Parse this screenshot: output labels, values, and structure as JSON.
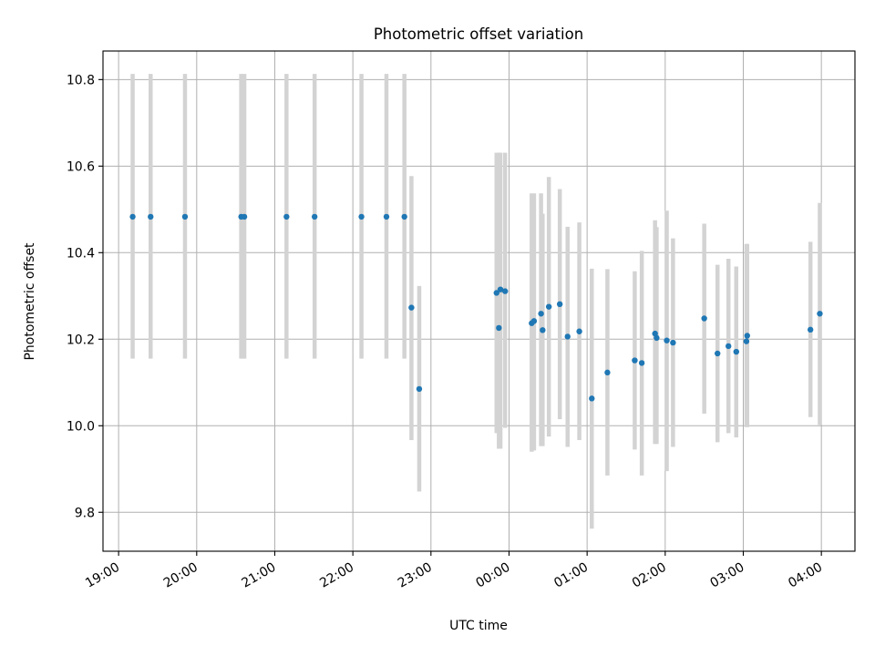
{
  "chart_data": {
    "type": "scatter",
    "title": "Photometric offset variation",
    "xlabel": "UTC time",
    "ylabel": "Photometric offset",
    "x_axis_type": "time",
    "x_unit": "hours",
    "xlim": [
      18.8,
      28.43
    ],
    "ylim": [
      9.71,
      10.866
    ],
    "xticks": [
      {
        "value": 19,
        "label": "19:00"
      },
      {
        "value": 20,
        "label": "20:00"
      },
      {
        "value": 21,
        "label": "21:00"
      },
      {
        "value": 22,
        "label": "22:00"
      },
      {
        "value": 23,
        "label": "23:00"
      },
      {
        "value": 24,
        "label": "00:00"
      },
      {
        "value": 25,
        "label": "01:00"
      },
      {
        "value": 26,
        "label": "02:00"
      },
      {
        "value": 27,
        "label": "03:00"
      },
      {
        "value": 28,
        "label": "04:00"
      }
    ],
    "yticks": [
      {
        "value": 9.8,
        "label": "9.8"
      },
      {
        "value": 10.0,
        "label": "10.0"
      },
      {
        "value": 10.2,
        "label": "10.2"
      },
      {
        "value": 10.4,
        "label": "10.4"
      },
      {
        "value": 10.6,
        "label": "10.6"
      },
      {
        "value": 10.8,
        "label": "10.8"
      }
    ],
    "grid": true,
    "colors": {
      "point": "#1f77b4",
      "errorbar": "#d3d3d3"
    },
    "series": [
      {
        "points": [
          {
            "x": 19.18,
            "y": 10.483,
            "yerr_low": 10.155,
            "yerr_high": 10.813
          },
          {
            "x": 19.41,
            "y": 10.483,
            "yerr_low": 10.155,
            "yerr_high": 10.813
          },
          {
            "x": 19.85,
            "y": 10.483,
            "yerr_low": 10.155,
            "yerr_high": 10.813
          },
          {
            "x": 20.57,
            "y": 10.483,
            "yerr_low": 10.155,
            "yerr_high": 10.813
          },
          {
            "x": 20.61,
            "y": 10.483,
            "yerr_low": 10.155,
            "yerr_high": 10.813
          },
          {
            "x": 21.15,
            "y": 10.483,
            "yerr_low": 10.155,
            "yerr_high": 10.813
          },
          {
            "x": 21.51,
            "y": 10.483,
            "yerr_low": 10.155,
            "yerr_high": 10.813
          },
          {
            "x": 22.11,
            "y": 10.483,
            "yerr_low": 10.155,
            "yerr_high": 10.813
          },
          {
            "x": 22.43,
            "y": 10.483,
            "yerr_low": 10.155,
            "yerr_high": 10.813
          },
          {
            "x": 22.66,
            "y": 10.483,
            "yerr_low": 10.155,
            "yerr_high": 10.813
          },
          {
            "x": 22.75,
            "y": 10.273,
            "yerr_low": 9.967,
            "yerr_high": 10.577
          },
          {
            "x": 22.85,
            "y": 10.085,
            "yerr_low": 9.848,
            "yerr_high": 10.323
          },
          {
            "x": 23.84,
            "y": 10.307,
            "yerr_low": 9.983,
            "yerr_high": 10.631
          },
          {
            "x": 23.87,
            "y": 10.226,
            "yerr_low": 9.947,
            "yerr_high": 10.631
          },
          {
            "x": 23.89,
            "y": 10.315,
            "yerr_low": 9.947,
            "yerr_high": 10.631
          },
          {
            "x": 23.95,
            "y": 10.311,
            "yerr_low": 9.995,
            "yerr_high": 10.631
          },
          {
            "x": 24.29,
            "y": 10.237,
            "yerr_low": 9.94,
            "yerr_high": 10.537
          },
          {
            "x": 24.32,
            "y": 10.242,
            "yerr_low": 9.943,
            "yerr_high": 10.537
          },
          {
            "x": 24.41,
            "y": 10.259,
            "yerr_low": 9.953,
            "yerr_high": 10.537
          },
          {
            "x": 24.43,
            "y": 10.221,
            "yerr_low": 9.953,
            "yerr_high": 10.49
          },
          {
            "x": 24.51,
            "y": 10.275,
            "yerr_low": 9.975,
            "yerr_high": 10.575
          },
          {
            "x": 24.65,
            "y": 10.281,
            "yerr_low": 10.015,
            "yerr_high": 10.547
          },
          {
            "x": 24.75,
            "y": 10.206,
            "yerr_low": 9.951,
            "yerr_high": 10.46
          },
          {
            "x": 24.9,
            "y": 10.218,
            "yerr_low": 9.967,
            "yerr_high": 10.47
          },
          {
            "x": 25.06,
            "y": 10.063,
            "yerr_low": 9.762,
            "yerr_high": 10.363
          },
          {
            "x": 25.26,
            "y": 10.123,
            "yerr_low": 9.885,
            "yerr_high": 10.362
          },
          {
            "x": 25.61,
            "y": 10.151,
            "yerr_low": 9.945,
            "yerr_high": 10.357
          },
          {
            "x": 25.7,
            "y": 10.145,
            "yerr_low": 9.885,
            "yerr_high": 10.404
          },
          {
            "x": 25.87,
            "y": 10.213,
            "yerr_low": 9.958,
            "yerr_high": 10.475
          },
          {
            "x": 25.89,
            "y": 10.203,
            "yerr_low": 9.958,
            "yerr_high": 10.459
          },
          {
            "x": 26.02,
            "y": 10.197,
            "yerr_low": 9.895,
            "yerr_high": 10.497
          },
          {
            "x": 26.1,
            "y": 10.192,
            "yerr_low": 9.951,
            "yerr_high": 10.433
          },
          {
            "x": 26.5,
            "y": 10.248,
            "yerr_low": 10.028,
            "yerr_high": 10.467
          },
          {
            "x": 26.67,
            "y": 10.167,
            "yerr_low": 9.962,
            "yerr_high": 10.372
          },
          {
            "x": 26.81,
            "y": 10.184,
            "yerr_low": 9.983,
            "yerr_high": 10.386
          },
          {
            "x": 26.91,
            "y": 10.171,
            "yerr_low": 9.973,
            "yerr_high": 10.368
          },
          {
            "x": 27.04,
            "y": 10.195,
            "yerr_low": 9.997,
            "yerr_high": 10.42
          },
          {
            "x": 27.05,
            "y": 10.208,
            "yerr_low": 9.997,
            "yerr_high": 10.42
          },
          {
            "x": 27.86,
            "y": 10.222,
            "yerr_low": 10.02,
            "yerr_high": 10.425
          },
          {
            "x": 27.98,
            "y": 10.259,
            "yerr_low": 10.002,
            "yerr_high": 10.515
          }
        ]
      }
    ]
  }
}
